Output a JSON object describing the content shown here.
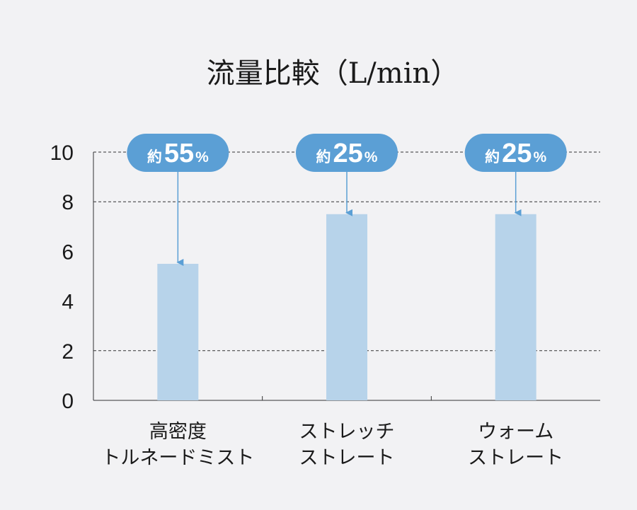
{
  "colors": {
    "background": "#f2f2f4",
    "bar": "#b7d3ea",
    "bubble": "#5b9fd5",
    "arrow": "#5b9fd5",
    "axis": "#333333",
    "grid": "#333333",
    "text": "#1a1a1a"
  },
  "chart_data": {
    "type": "bar",
    "title": "流量比較（L/min）",
    "categories": [
      [
        "高密度",
        "トルネードミスト"
      ],
      [
        "ストレッチ",
        "ストレート"
      ],
      [
        "ウォーム",
        "ストレート"
      ]
    ],
    "values": [
      5.5,
      7.5,
      7.5
    ],
    "ylim": [
      0,
      10
    ],
    "yticks": [
      0,
      2,
      4,
      6,
      8,
      10
    ],
    "grid_lines": [
      2,
      8,
      10
    ],
    "grid": "dashed",
    "annotations": [
      {
        "prefix": "約",
        "value": "55",
        "unit": "%"
      },
      {
        "prefix": "約",
        "value": "25",
        "unit": "%"
      },
      {
        "prefix": "約",
        "value": "25",
        "unit": "%"
      }
    ]
  }
}
